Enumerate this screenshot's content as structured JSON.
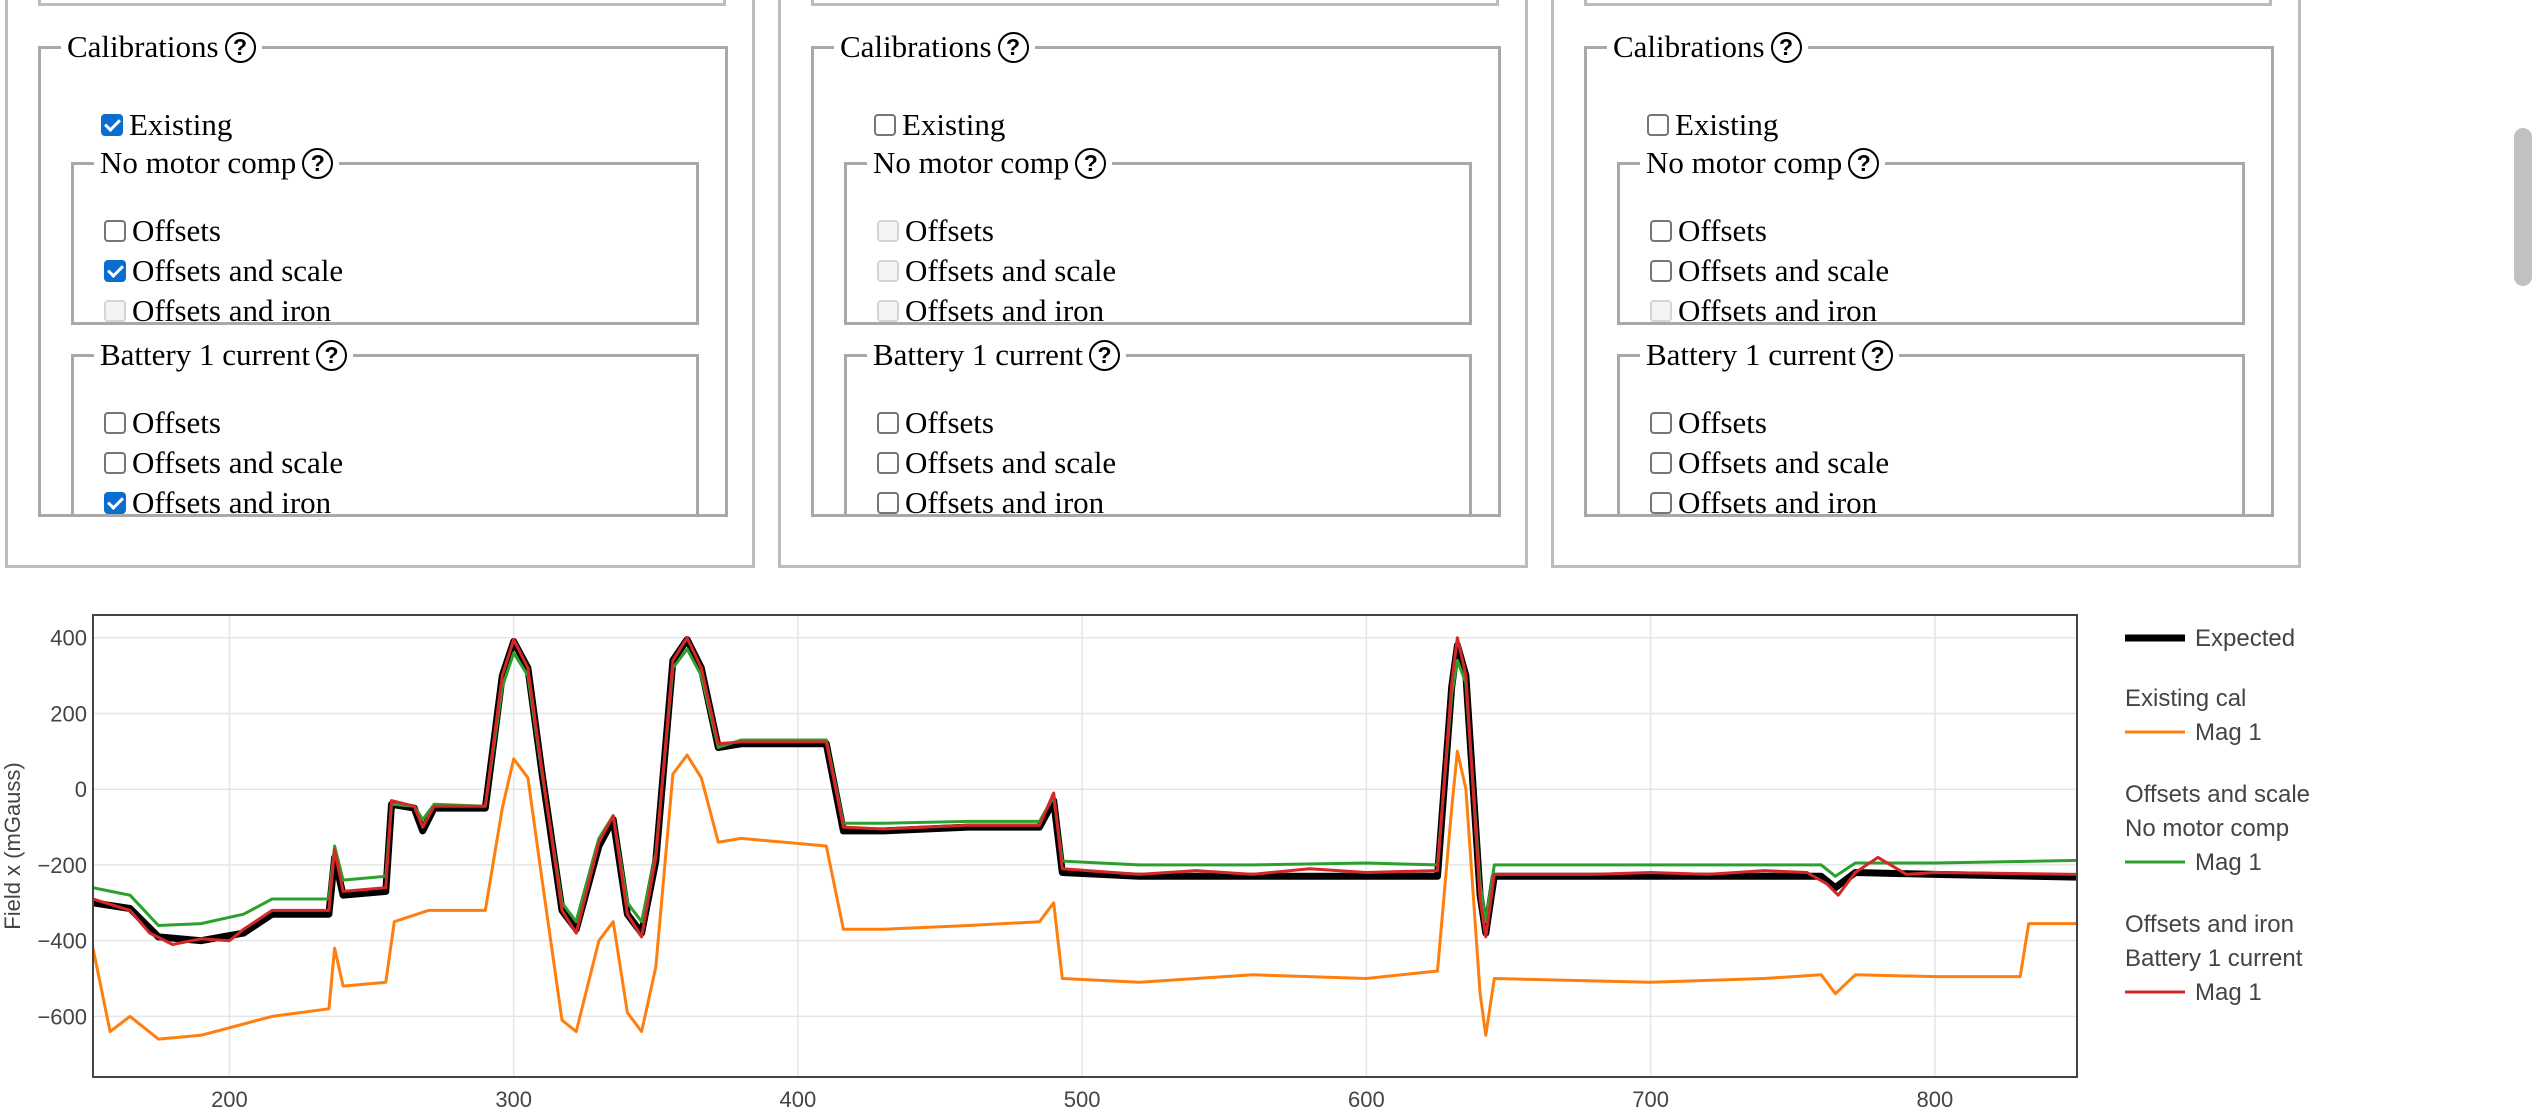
{
  "panels": [
    {
      "calibrations_label": "Calibrations",
      "existing": {
        "label": "Existing",
        "checked": true,
        "disabled": false
      },
      "groups": [
        {
          "title": "No motor comp",
          "options": [
            {
              "label": "Offsets",
              "checked": false,
              "disabled": false
            },
            {
              "label": "Offsets and scale",
              "checked": true,
              "disabled": false
            },
            {
              "label": "Offsets and iron",
              "checked": false,
              "disabled": true
            }
          ]
        },
        {
          "title": "Battery 1 current",
          "options": [
            {
              "label": "Offsets",
              "checked": false,
              "disabled": false
            },
            {
              "label": "Offsets and scale",
              "checked": false,
              "disabled": false
            },
            {
              "label": "Offsets and iron",
              "checked": true,
              "disabled": false
            }
          ]
        }
      ]
    },
    {
      "calibrations_label": "Calibrations",
      "existing": {
        "label": "Existing",
        "checked": false,
        "disabled": false
      },
      "groups": [
        {
          "title": "No motor comp",
          "options": [
            {
              "label": "Offsets",
              "checked": false,
              "disabled": true
            },
            {
              "label": "Offsets and scale",
              "checked": false,
              "disabled": true
            },
            {
              "label": "Offsets and iron",
              "checked": false,
              "disabled": true
            }
          ]
        },
        {
          "title": "Battery 1 current",
          "options": [
            {
              "label": "Offsets",
              "checked": false,
              "disabled": false
            },
            {
              "label": "Offsets and scale",
              "checked": false,
              "disabled": false
            },
            {
              "label": "Offsets and iron",
              "checked": false,
              "disabled": false
            }
          ]
        }
      ]
    },
    {
      "calibrations_label": "Calibrations",
      "existing": {
        "label": "Existing",
        "checked": false,
        "disabled": false
      },
      "groups": [
        {
          "title": "No motor comp",
          "options": [
            {
              "label": "Offsets",
              "checked": false,
              "disabled": false
            },
            {
              "label": "Offsets and scale",
              "checked": false,
              "disabled": false
            },
            {
              "label": "Offsets and iron",
              "checked": false,
              "disabled": true
            }
          ]
        },
        {
          "title": "Battery 1 current",
          "options": [
            {
              "label": "Offsets",
              "checked": false,
              "disabled": false
            },
            {
              "label": "Offsets and scale",
              "checked": false,
              "disabled": false
            },
            {
              "label": "Offsets and iron",
              "checked": false,
              "disabled": false
            }
          ]
        }
      ]
    }
  ],
  "help_glyph": "?",
  "chart_data": {
    "type": "line",
    "title": "",
    "xlabel": "",
    "ylabel": "Field x (mGauss)",
    "xlim": [
      152,
      850
    ],
    "ylim": [
      -760,
      460
    ],
    "xticks": [
      200,
      300,
      400,
      500,
      600,
      700,
      800
    ],
    "yticks": [
      400,
      200,
      0,
      -200,
      -400,
      -600
    ],
    "ytick_labels": [
      "400",
      "200",
      "0",
      "−200",
      "−400",
      "−600"
    ],
    "grid": true,
    "legend_position": "right",
    "colors": {
      "expected": "#000000",
      "existing": "#ff7f0e",
      "scale": "#2ca02c",
      "iron": "#d62728"
    },
    "legend": [
      {
        "group": "",
        "name": "Expected",
        "color": "#000000",
        "width": 7
      },
      {
        "group": "Existing cal",
        "name": "Mag 1",
        "color": "#ff7f0e",
        "width": 3
      },
      {
        "group": "Offsets and scale\nNo motor comp",
        "name": "Mag 1",
        "color": "#2ca02c",
        "width": 3
      },
      {
        "group": "Offsets and iron\nBattery 1 current",
        "name": "Mag 1",
        "color": "#d62728",
        "width": 3
      }
    ],
    "series": [
      {
        "name": "Expected",
        "color": "#000000",
        "points": [
          [
            152,
            -300
          ],
          [
            165,
            -315
          ],
          [
            175,
            -390
          ],
          [
            190,
            -400
          ],
          [
            205,
            -380
          ],
          [
            215,
            -330
          ],
          [
            235,
            -330
          ],
          [
            237,
            -180
          ],
          [
            240,
            -280
          ],
          [
            255,
            -270
          ],
          [
            257,
            -40
          ],
          [
            265,
            -50
          ],
          [
            268,
            -110
          ],
          [
            272,
            -50
          ],
          [
            290,
            -50
          ],
          [
            296,
            300
          ],
          [
            300,
            390
          ],
          [
            305,
            320
          ],
          [
            310,
            40
          ],
          [
            317,
            -320
          ],
          [
            322,
            -370
          ],
          [
            330,
            -150
          ],
          [
            335,
            -80
          ],
          [
            340,
            -330
          ],
          [
            345,
            -380
          ],
          [
            350,
            -190
          ],
          [
            356,
            340
          ],
          [
            361,
            395
          ],
          [
            366,
            320
          ],
          [
            372,
            110
          ],
          [
            380,
            120
          ],
          [
            410,
            120
          ],
          [
            416,
            -110
          ],
          [
            430,
            -110
          ],
          [
            460,
            -100
          ],
          [
            485,
            -100
          ],
          [
            490,
            -30
          ],
          [
            493,
            -220
          ],
          [
            520,
            -230
          ],
          [
            560,
            -230
          ],
          [
            600,
            -230
          ],
          [
            625,
            -230
          ],
          [
            630,
            270
          ],
          [
            632,
            380
          ],
          [
            635,
            300
          ],
          [
            640,
            -280
          ],
          [
            642,
            -380
          ],
          [
            645,
            -230
          ],
          [
            700,
            -230
          ],
          [
            740,
            -230
          ],
          [
            760,
            -230
          ],
          [
            765,
            -260
          ],
          [
            772,
            -220
          ],
          [
            800,
            -225
          ],
          [
            850,
            -232
          ]
        ],
        "width": 7
      },
      {
        "name": "Existing cal / Mag 1",
        "color": "#ff7f0e",
        "points": [
          [
            152,
            -420
          ],
          [
            158,
            -640
          ],
          [
            165,
            -600
          ],
          [
            175,
            -660
          ],
          [
            190,
            -650
          ],
          [
            205,
            -620
          ],
          [
            215,
            -600
          ],
          [
            235,
            -580
          ],
          [
            237,
            -420
          ],
          [
            240,
            -520
          ],
          [
            255,
            -510
          ],
          [
            258,
            -350
          ],
          [
            270,
            -320
          ],
          [
            290,
            -320
          ],
          [
            296,
            -50
          ],
          [
            300,
            80
          ],
          [
            305,
            30
          ],
          [
            310,
            -240
          ],
          [
            317,
            -610
          ],
          [
            322,
            -640
          ],
          [
            330,
            -400
          ],
          [
            335,
            -350
          ],
          [
            340,
            -590
          ],
          [
            345,
            -640
          ],
          [
            350,
            -470
          ],
          [
            356,
            40
          ],
          [
            361,
            90
          ],
          [
            366,
            30
          ],
          [
            372,
            -140
          ],
          [
            380,
            -130
          ],
          [
            410,
            -150
          ],
          [
            416,
            -370
          ],
          [
            430,
            -370
          ],
          [
            460,
            -360
          ],
          [
            485,
            -350
          ],
          [
            490,
            -300
          ],
          [
            493,
            -500
          ],
          [
            520,
            -510
          ],
          [
            560,
            -490
          ],
          [
            600,
            -500
          ],
          [
            625,
            -480
          ],
          [
            630,
            -50
          ],
          [
            632,
            100
          ],
          [
            635,
            0
          ],
          [
            640,
            -540
          ],
          [
            642,
            -650
          ],
          [
            645,
            -500
          ],
          [
            700,
            -510
          ],
          [
            740,
            -500
          ],
          [
            760,
            -490
          ],
          [
            765,
            -540
          ],
          [
            772,
            -490
          ],
          [
            800,
            -495
          ],
          [
            830,
            -495
          ],
          [
            833,
            -355
          ],
          [
            850,
            -355
          ]
        ],
        "width": 3
      },
      {
        "name": "Offsets and scale No motor comp / Mag 1",
        "color": "#2ca02c",
        "points": [
          [
            152,
            -260
          ],
          [
            165,
            -280
          ],
          [
            175,
            -360
          ],
          [
            190,
            -355
          ],
          [
            205,
            -330
          ],
          [
            215,
            -290
          ],
          [
            235,
            -290
          ],
          [
            237,
            -150
          ],
          [
            240,
            -240
          ],
          [
            255,
            -230
          ],
          [
            257,
            -40
          ],
          [
            265,
            -45
          ],
          [
            268,
            -80
          ],
          [
            272,
            -40
          ],
          [
            290,
            -45
          ],
          [
            296,
            270
          ],
          [
            300,
            360
          ],
          [
            305,
            300
          ],
          [
            310,
            40
          ],
          [
            317,
            -300
          ],
          [
            322,
            -350
          ],
          [
            330,
            -130
          ],
          [
            335,
            -70
          ],
          [
            340,
            -300
          ],
          [
            345,
            -350
          ],
          [
            350,
            -170
          ],
          [
            356,
            320
          ],
          [
            361,
            370
          ],
          [
            366,
            300
          ],
          [
            372,
            110
          ],
          [
            380,
            130
          ],
          [
            410,
            130
          ],
          [
            416,
            -90
          ],
          [
            430,
            -90
          ],
          [
            460,
            -85
          ],
          [
            485,
            -85
          ],
          [
            490,
            -20
          ],
          [
            493,
            -190
          ],
          [
            520,
            -200
          ],
          [
            560,
            -200
          ],
          [
            600,
            -195
          ],
          [
            625,
            -200
          ],
          [
            630,
            250
          ],
          [
            632,
            340
          ],
          [
            635,
            280
          ],
          [
            640,
            -250
          ],
          [
            642,
            -350
          ],
          [
            645,
            -200
          ],
          [
            700,
            -200
          ],
          [
            740,
            -200
          ],
          [
            760,
            -200
          ],
          [
            765,
            -230
          ],
          [
            772,
            -195
          ],
          [
            800,
            -195
          ],
          [
            850,
            -188
          ]
        ],
        "width": 3
      },
      {
        "name": "Offsets and iron Battery 1 current / Mag 1",
        "color": "#d62728",
        "points": [
          [
            152,
            -290
          ],
          [
            165,
            -320
          ],
          [
            172,
            -380
          ],
          [
            180,
            -410
          ],
          [
            190,
            -395
          ],
          [
            200,
            -400
          ],
          [
            205,
            -370
          ],
          [
            215,
            -320
          ],
          [
            235,
            -320
          ],
          [
            237,
            -160
          ],
          [
            240,
            -270
          ],
          [
            255,
            -260
          ],
          [
            257,
            -30
          ],
          [
            265,
            -45
          ],
          [
            268,
            -100
          ],
          [
            272,
            -45
          ],
          [
            290,
            -45
          ],
          [
            296,
            300
          ],
          [
            300,
            395
          ],
          [
            305,
            320
          ],
          [
            310,
            50
          ],
          [
            317,
            -320
          ],
          [
            322,
            -380
          ],
          [
            330,
            -140
          ],
          [
            335,
            -70
          ],
          [
            340,
            -330
          ],
          [
            345,
            -390
          ],
          [
            350,
            -180
          ],
          [
            356,
            340
          ],
          [
            361,
            400
          ],
          [
            366,
            320
          ],
          [
            372,
            120
          ],
          [
            380,
            125
          ],
          [
            410,
            125
          ],
          [
            416,
            -100
          ],
          [
            430,
            -105
          ],
          [
            460,
            -95
          ],
          [
            485,
            -95
          ],
          [
            490,
            -10
          ],
          [
            493,
            -210
          ],
          [
            520,
            -225
          ],
          [
            540,
            -215
          ],
          [
            560,
            -225
          ],
          [
            580,
            -210
          ],
          [
            600,
            -220
          ],
          [
            625,
            -215
          ],
          [
            630,
            280
          ],
          [
            632,
            400
          ],
          [
            635,
            300
          ],
          [
            640,
            -290
          ],
          [
            642,
            -390
          ],
          [
            645,
            -225
          ],
          [
            680,
            -225
          ],
          [
            700,
            -220
          ],
          [
            720,
            -225
          ],
          [
            740,
            -215
          ],
          [
            755,
            -220
          ],
          [
            762,
            -250
          ],
          [
            766,
            -280
          ],
          [
            772,
            -220
          ],
          [
            780,
            -180
          ],
          [
            790,
            -225
          ],
          [
            800,
            -220
          ],
          [
            850,
            -225
          ]
        ],
        "width": 3
      }
    ]
  }
}
